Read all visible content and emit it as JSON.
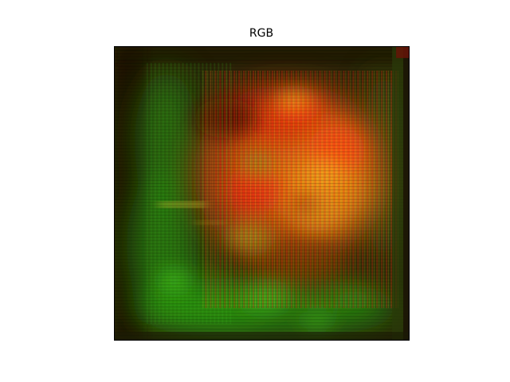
{
  "figure": {
    "title": "RGB"
  },
  "image": {
    "description_colors": {
      "background_dark": "#1f1a05",
      "red": "#e0321a",
      "orange": "#e8901a",
      "yellow": "#d8c020",
      "green": "#2aa014",
      "dark_green": "#1f5a10",
      "dark_red": "#5a1408"
    }
  }
}
